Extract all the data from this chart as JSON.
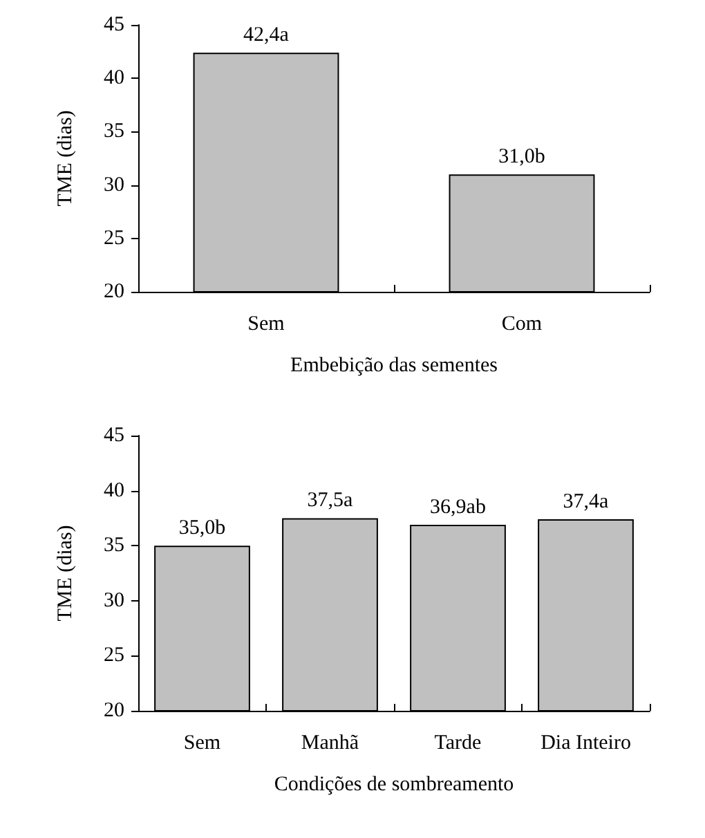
{
  "chart_data": [
    {
      "type": "bar",
      "categories": [
        "Sem",
        "Com"
      ],
      "values": [
        42.4,
        31.0
      ],
      "value_labels": [
        "42,4a",
        "31,0b"
      ],
      "color": "#c0c0c0",
      "xlabel": "Embebição das sementes",
      "ylabel": "TME (dias)",
      "ylim": [
        20,
        45
      ],
      "yticks": [
        20,
        25,
        30,
        35,
        40,
        45
      ],
      "grid": false
    },
    {
      "type": "bar",
      "categories": [
        "Sem",
        "Manhã",
        "Tarde",
        "Dia Inteiro"
      ],
      "values": [
        35.0,
        37.5,
        36.9,
        37.4
      ],
      "value_labels": [
        "35,0b",
        "37,5a",
        "36,9ab",
        "37,4a"
      ],
      "color": "#c0c0c0",
      "xlabel": "Condições de sombreamento",
      "ylabel": "TME (dias)",
      "ylim": [
        20,
        45
      ],
      "yticks": [
        20,
        25,
        30,
        35,
        40,
        45
      ],
      "grid": false
    }
  ]
}
